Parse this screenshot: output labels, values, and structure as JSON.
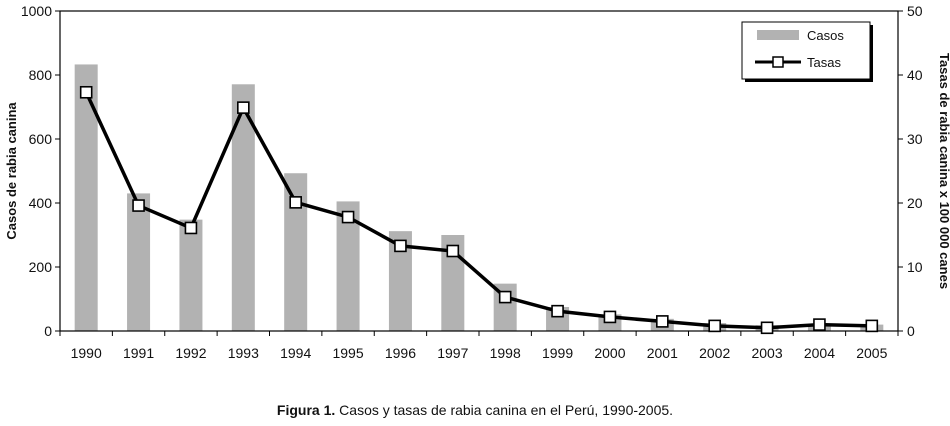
{
  "chart_data": {
    "type": "bar",
    "categories": [
      "1990",
      "1991",
      "1992",
      "1993",
      "1994",
      "1995",
      "1996",
      "1997",
      "1998",
      "1999",
      "2000",
      "2001",
      "2002",
      "2003",
      "2004",
      "2005"
    ],
    "series": [
      {
        "name": "Casos",
        "type": "bar",
        "axis": "left",
        "color": "#b2b2b2",
        "values": [
          833,
          430,
          348,
          771,
          493,
          405,
          312,
          300,
          148,
          75,
          52,
          38,
          25,
          18,
          22,
          20
        ]
      },
      {
        "name": "Tasas",
        "type": "line",
        "axis": "right",
        "color": "#000000",
        "values": [
          37.3,
          19.6,
          16.1,
          34.9,
          20.1,
          17.8,
          13.3,
          12.5,
          5.3,
          3.1,
          2.2,
          1.5,
          0.8,
          0.5,
          1.0,
          0.8
        ]
      }
    ],
    "ylabel": "Casos de rabia canina",
    "ylim": [
      0,
      1000
    ],
    "yticks": [
      0,
      200,
      400,
      600,
      800,
      1000
    ],
    "y2label": "Tasas de rabia canina x 100 000 canes",
    "y2lim": [
      0,
      50
    ],
    "y2ticks": [
      0,
      10,
      20,
      30,
      40,
      50
    ],
    "legend_position": "top-right",
    "grid": false
  },
  "caption": {
    "label": "Figura 1.",
    "text": " Casos y tasas de rabia canina en el Perú, 1990-2005."
  }
}
